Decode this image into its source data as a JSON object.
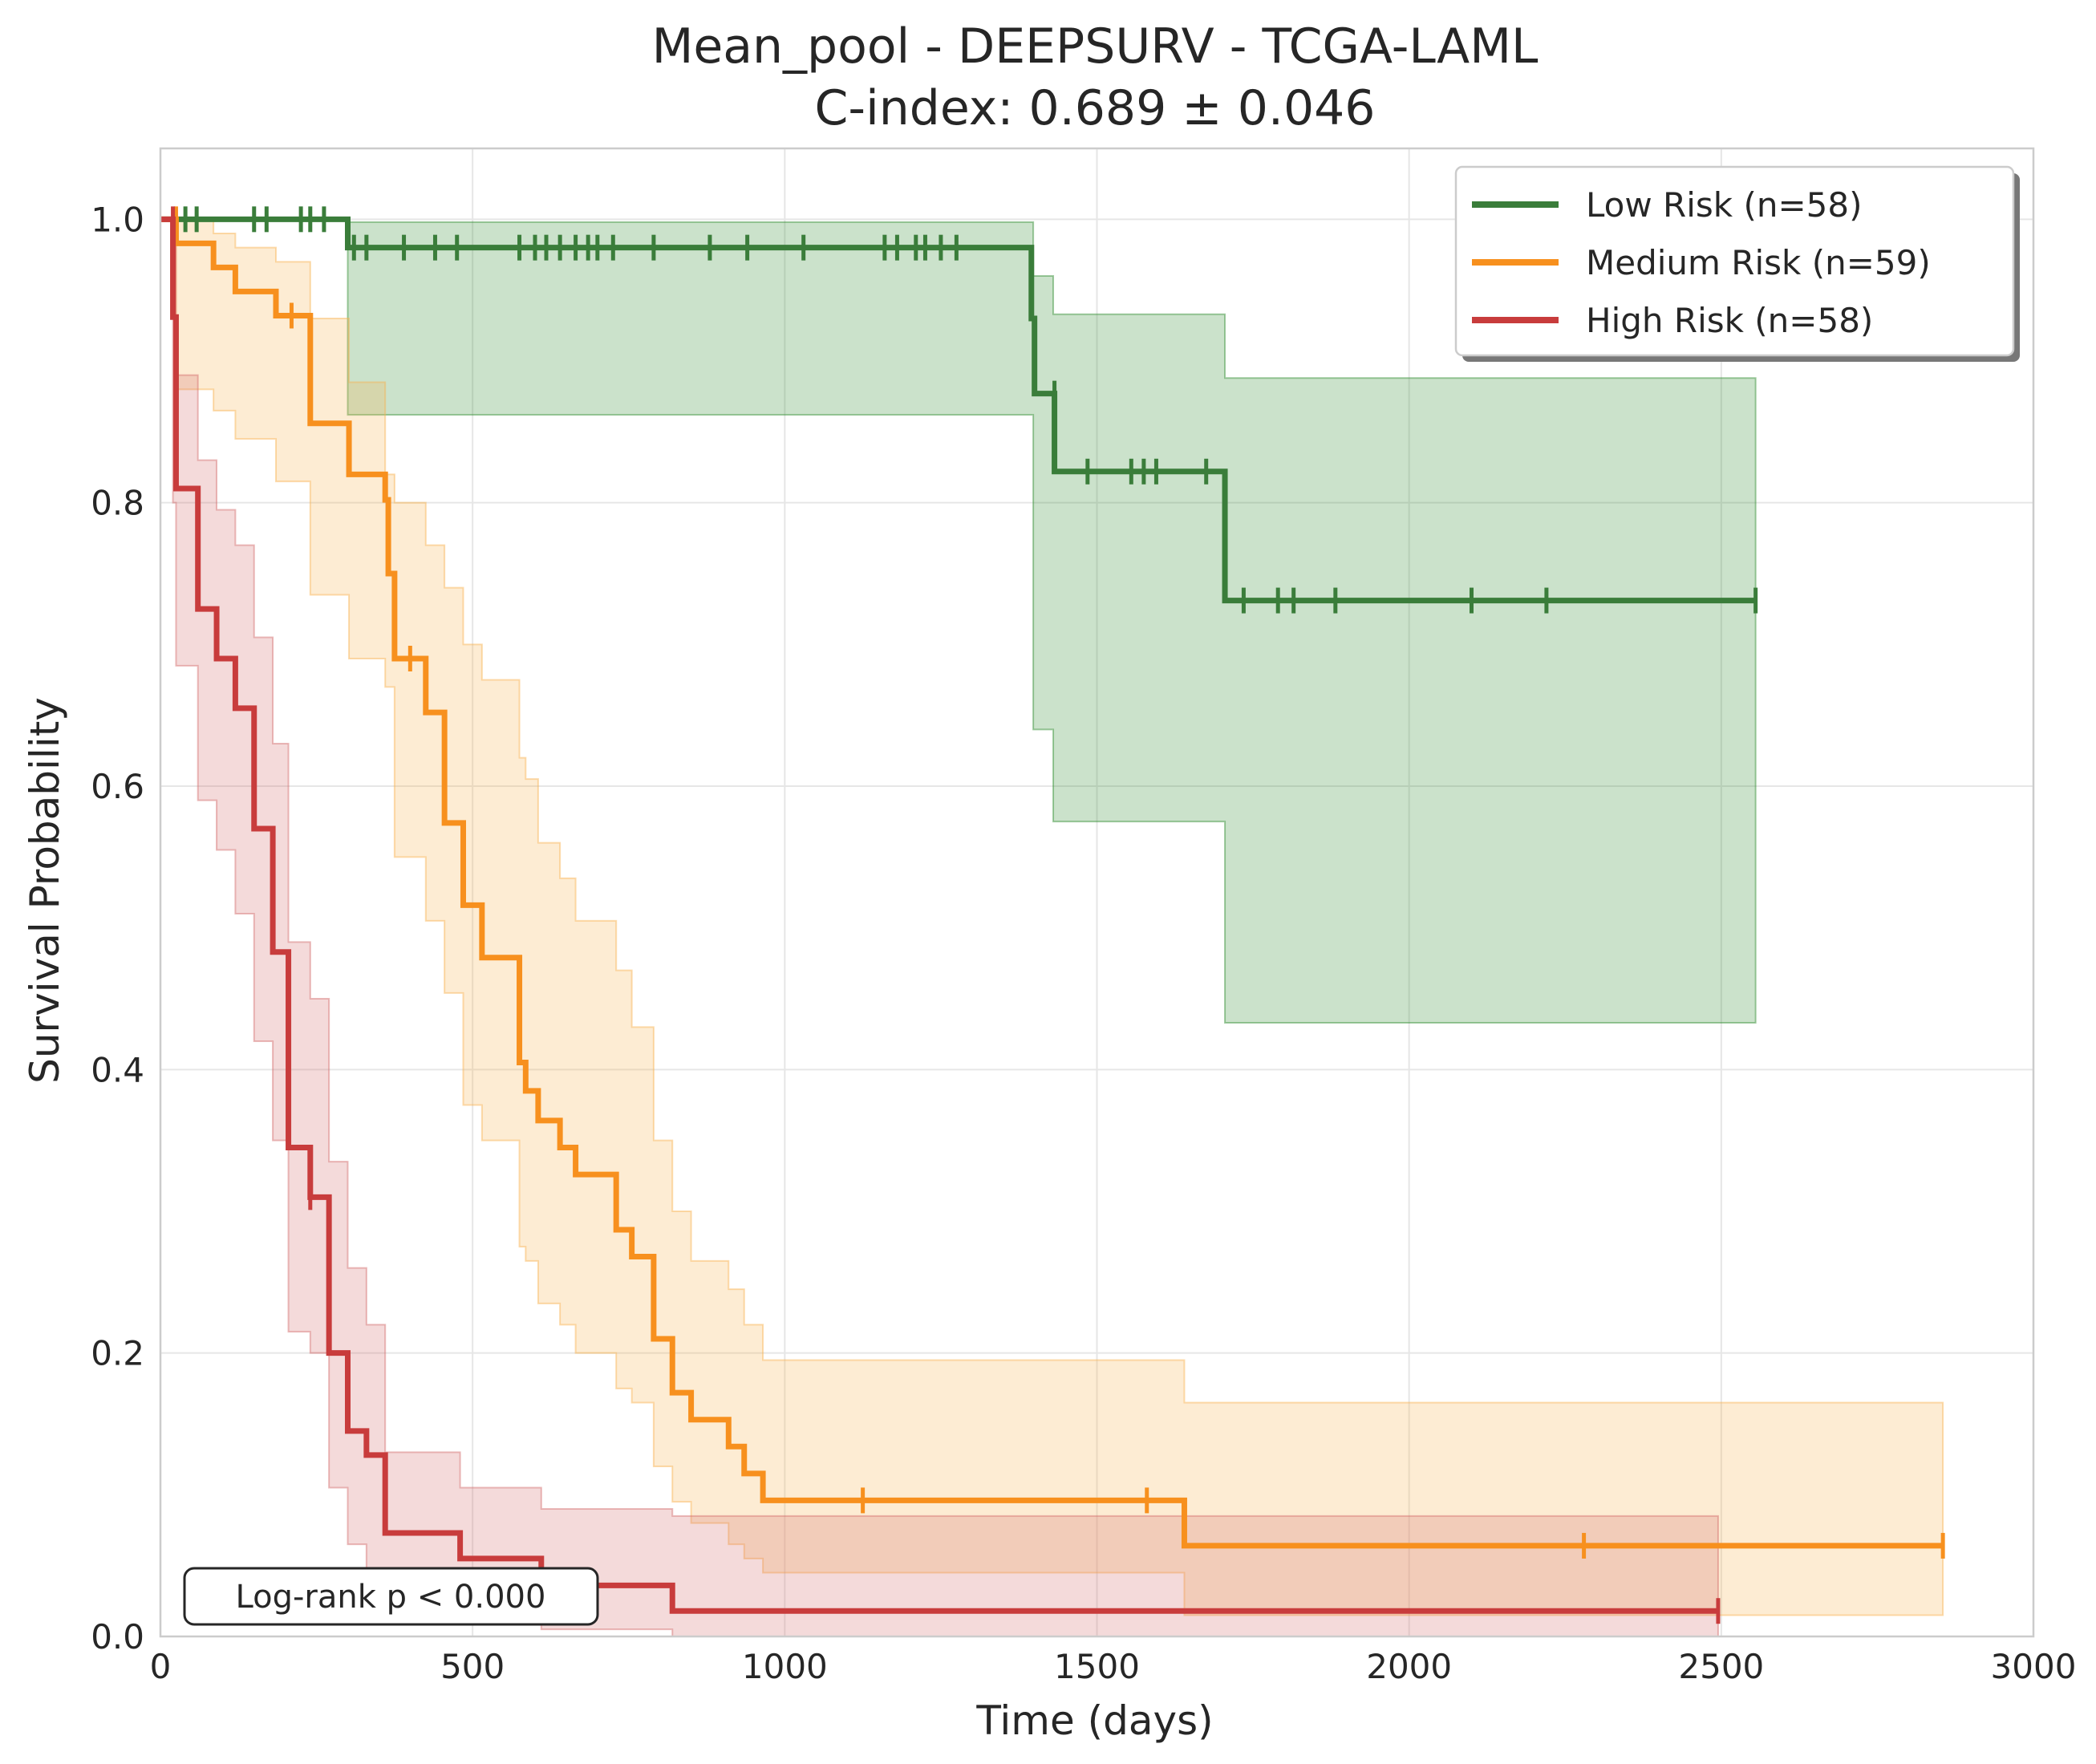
{
  "chart_data": {
    "type": "line",
    "title_line1": "Mean_pool - DEEPSURV - TCGA-LAML",
    "title_line2": "C-index: 0.689 ± 0.046",
    "xlabel": "Time (days)",
    "ylabel": "Survival Probability",
    "xlim": [
      0,
      3000
    ],
    "ylim": [
      0,
      1.05
    ],
    "xticks": [
      0,
      500,
      1000,
      1500,
      2000,
      2500,
      3000
    ],
    "xtick_labels": [
      "0",
      "500",
      "1000",
      "1500",
      "2000",
      "2500",
      "3000"
    ],
    "yticks": [
      0.0,
      0.2,
      0.4,
      0.6,
      0.8,
      1.0
    ],
    "ytick_labels": [
      "0.0",
      "0.2",
      "0.4",
      "0.6",
      "0.8",
      "1.0"
    ],
    "grid": true,
    "legend_position": "top-right",
    "annotation": "Log-rank p < 0.000",
    "series": [
      {
        "name": "Low Risk (n=58)",
        "color": "#3a7d3a",
        "fill": "#2e8b2e",
        "steps": [
          [
            0,
            1.0
          ],
          [
            300,
            0.98
          ],
          [
            1395,
            0.93
          ],
          [
            1400,
            0.877
          ],
          [
            1432,
            0.822
          ],
          [
            1705,
            0.731
          ],
          [
            2555,
            0.731
          ]
        ],
        "ci_steps": [
          [
            0,
            1.0,
            1.0
          ],
          [
            300,
            0.862,
            0.998
          ],
          [
            1398,
            0.64,
            0.96
          ],
          [
            1430,
            0.575,
            0.933
          ],
          [
            1705,
            0.433,
            0.888
          ],
          [
            2555,
            0.433,
            0.888
          ]
        ],
        "censors": [
          [
            40,
            1.0
          ],
          [
            58,
            1.0
          ],
          [
            150,
            1.0
          ],
          [
            170,
            1.0
          ],
          [
            225,
            1.0
          ],
          [
            240,
            1.0
          ],
          [
            262,
            1.0
          ],
          [
            310,
            0.98
          ],
          [
            330,
            0.98
          ],
          [
            390,
            0.98
          ],
          [
            440,
            0.98
          ],
          [
            475,
            0.98
          ],
          [
            575,
            0.98
          ],
          [
            600,
            0.98
          ],
          [
            618,
            0.98
          ],
          [
            640,
            0.98
          ],
          [
            665,
            0.98
          ],
          [
            685,
            0.98
          ],
          [
            700,
            0.98
          ],
          [
            725,
            0.98
          ],
          [
            790,
            0.98
          ],
          [
            880,
            0.98
          ],
          [
            940,
            0.98
          ],
          [
            1030,
            0.98
          ],
          [
            1160,
            0.98
          ],
          [
            1180,
            0.98
          ],
          [
            1210,
            0.98
          ],
          [
            1225,
            0.98
          ],
          [
            1250,
            0.98
          ],
          [
            1275,
            0.98
          ],
          [
            1432,
            0.877
          ],
          [
            1485,
            0.822
          ],
          [
            1555,
            0.822
          ],
          [
            1575,
            0.822
          ],
          [
            1595,
            0.822
          ],
          [
            1675,
            0.822
          ],
          [
            1735,
            0.731
          ],
          [
            1790,
            0.731
          ],
          [
            1815,
            0.731
          ],
          [
            1882,
            0.731
          ],
          [
            2100,
            0.731
          ],
          [
            2220,
            0.731
          ],
          [
            2555,
            0.731
          ]
        ]
      },
      {
        "name": "Medium Risk (n=59)",
        "color": "#f7901e",
        "fill": "#f9b24e",
        "steps": [
          [
            0,
            1.0
          ],
          [
            25,
            0.983
          ],
          [
            85,
            0.966
          ],
          [
            120,
            0.949
          ],
          [
            185,
            0.932
          ],
          [
            240,
            0.856
          ],
          [
            302,
            0.82
          ],
          [
            360,
            0.802
          ],
          [
            365,
            0.75
          ],
          [
            375,
            0.69
          ],
          [
            425,
            0.652
          ],
          [
            455,
            0.574
          ],
          [
            485,
            0.516
          ],
          [
            515,
            0.479
          ],
          [
            575,
            0.405
          ],
          [
            585,
            0.385
          ],
          [
            605,
            0.364
          ],
          [
            640,
            0.345
          ],
          [
            665,
            0.326
          ],
          [
            730,
            0.287
          ],
          [
            755,
            0.268
          ],
          [
            790,
            0.21
          ],
          [
            820,
            0.172
          ],
          [
            850,
            0.153
          ],
          [
            910,
            0.134
          ],
          [
            935,
            0.115
          ],
          [
            965,
            0.096
          ],
          [
            1640,
            0.064
          ],
          [
            2855,
            0.064
          ]
        ],
        "ci_steps": [
          [
            0,
            1.0,
            1.0
          ],
          [
            25,
            0.88,
            1.0
          ],
          [
            85,
            0.865,
            0.99
          ],
          [
            120,
            0.845,
            0.98
          ],
          [
            185,
            0.815,
            0.97
          ],
          [
            240,
            0.735,
            0.93
          ],
          [
            302,
            0.69,
            0.885
          ],
          [
            360,
            0.67,
            0.82
          ],
          [
            375,
            0.55,
            0.8
          ],
          [
            425,
            0.505,
            0.77
          ],
          [
            455,
            0.454,
            0.74
          ],
          [
            485,
            0.375,
            0.7
          ],
          [
            515,
            0.35,
            0.675
          ],
          [
            575,
            0.275,
            0.62
          ],
          [
            585,
            0.265,
            0.605
          ],
          [
            605,
            0.235,
            0.56
          ],
          [
            640,
            0.22,
            0.535
          ],
          [
            665,
            0.2,
            0.505
          ],
          [
            730,
            0.175,
            0.47
          ],
          [
            755,
            0.165,
            0.43
          ],
          [
            790,
            0.12,
            0.35
          ],
          [
            820,
            0.095,
            0.3
          ],
          [
            850,
            0.08,
            0.265
          ],
          [
            910,
            0.065,
            0.245
          ],
          [
            935,
            0.055,
            0.22
          ],
          [
            965,
            0.045,
            0.195
          ],
          [
            1640,
            0.015,
            0.165
          ],
          [
            2855,
            0.015,
            0.165
          ]
        ],
        "censors": [
          [
            25,
            1.0
          ],
          [
            210,
            0.932
          ],
          [
            400,
            0.69
          ],
          [
            1125,
            0.096
          ],
          [
            1580,
            0.096
          ],
          [
            2280,
            0.064
          ],
          [
            2855,
            0.064
          ]
        ]
      },
      {
        "name": "High Risk (n=58)",
        "color": "#c83c3c",
        "fill": "#d36b6b",
        "steps": [
          [
            0,
            1.0
          ],
          [
            20,
            0.931
          ],
          [
            25,
            0.81
          ],
          [
            60,
            0.725
          ],
          [
            90,
            0.69
          ],
          [
            120,
            0.655
          ],
          [
            150,
            0.57
          ],
          [
            180,
            0.483
          ],
          [
            205,
            0.345
          ],
          [
            240,
            0.31
          ],
          [
            270,
            0.2
          ],
          [
            300,
            0.145
          ],
          [
            330,
            0.128
          ],
          [
            360,
            0.073
          ],
          [
            480,
            0.055
          ],
          [
            610,
            0.036
          ],
          [
            820,
            0.018
          ],
          [
            2495,
            0.018
          ]
        ],
        "ci_steps": [
          [
            0,
            1.0,
            1.0
          ],
          [
            20,
            0.8,
            1.0
          ],
          [
            25,
            0.685,
            0.89
          ],
          [
            60,
            0.59,
            0.83
          ],
          [
            90,
            0.555,
            0.795
          ],
          [
            120,
            0.51,
            0.77
          ],
          [
            150,
            0.42,
            0.705
          ],
          [
            180,
            0.35,
            0.63
          ],
          [
            205,
            0.215,
            0.49
          ],
          [
            240,
            0.2,
            0.45
          ],
          [
            270,
            0.105,
            0.335
          ],
          [
            300,
            0.065,
            0.26
          ],
          [
            330,
            0.045,
            0.22
          ],
          [
            360,
            0.02,
            0.13
          ],
          [
            480,
            0.01,
            0.105
          ],
          [
            610,
            0.005,
            0.09
          ],
          [
            820,
            0.0,
            0.085
          ],
          [
            2495,
            0.0,
            0.085
          ]
        ],
        "censors": [
          [
            20,
            1.0
          ],
          [
            240,
            0.31
          ],
          [
            2495,
            0.018
          ]
        ]
      }
    ]
  }
}
